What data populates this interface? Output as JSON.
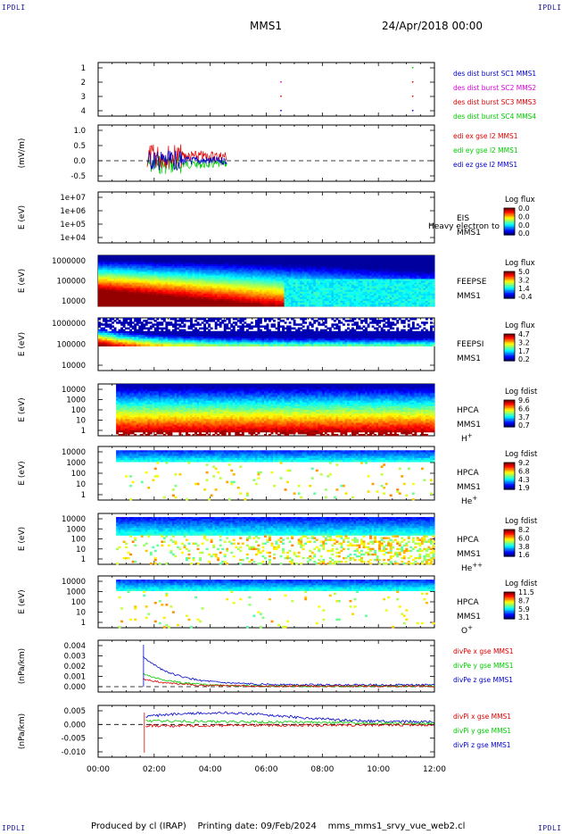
{
  "corners": {
    "tl": "IPDLI",
    "tr": "IPDLI",
    "bl": "IPDLI",
    "br": "IPDLI"
  },
  "header": {
    "spacecraft": "MMS1",
    "date": "24/Apr/2018 00:00"
  },
  "footer": {
    "text": "Produced by cl (IRAP)    Printing date: 09/Feb/2024    mms_mms1_srvy_vue_web2.cl"
  },
  "x_axis": {
    "ticks": [
      "00:00",
      "02:00",
      "04:00",
      "06:00",
      "08:00",
      "10:00",
      "12:00"
    ]
  },
  "colors": {
    "red": "#dd0000",
    "green": "#00cc00",
    "blue": "#0000cc",
    "magenta": "#dd00dd"
  },
  "chart_data": [
    {
      "type": "scatter",
      "name": "burst",
      "ylim": [
        0.5,
        4.5
      ],
      "ticks": [
        "1",
        "2",
        "3",
        "4"
      ],
      "series": [
        {
          "name": "des dist burst SC1 MMS1",
          "color": "#0000cc"
        },
        {
          "name": "des dist burst SC2 MMS2",
          "color": "#dd00dd"
        },
        {
          "name": "des dist burst SC3 MMS3",
          "color": "#dd0000"
        },
        {
          "name": "des dist burst SC4 MMS4",
          "color": "#00cc00"
        }
      ]
    },
    {
      "type": "line",
      "name": "edi",
      "ylabel": "(mV/m)",
      "ylim": [
        -0.8,
        1.2
      ],
      "ticks": [
        "1.0",
        "0.5",
        "0.0",
        "-0.5"
      ],
      "series": [
        {
          "name": "edi ex gse l2 MMS1",
          "color": "#dd0000"
        },
        {
          "name": "edi ey gse l2 MMS1",
          "color": "#00cc00"
        },
        {
          "name": "edi ez gse l2 MMS1",
          "color": "#0000cc"
        }
      ]
    },
    {
      "type": "heatmap",
      "name": "eis",
      "ylabel": "E (eV)",
      "ticks": [
        "1e+07",
        "1e+06",
        "1e+05",
        "1e+04"
      ],
      "labels": [
        "EIS",
        "MMS1"
      ],
      "overlay": "Heavy electron to",
      "colorbar": {
        "title": "Log flux",
        "values": [
          "0.0",
          "0.0",
          "0.0",
          "0.0"
        ]
      }
    },
    {
      "type": "heatmap",
      "name": "feepse",
      "ylabel": "E (eV)",
      "ticks": [
        "1000000",
        "100000",
        "10000"
      ],
      "labels": [
        "FEEPSE",
        "MMS1"
      ],
      "colorbar": {
        "title": "Log flux",
        "values": [
          "5.0",
          "3.2",
          "1.4",
          "-0.4"
        ]
      }
    },
    {
      "type": "heatmap",
      "name": "feepsi",
      "ylabel": "E (eV)",
      "ticks": [
        "1000000",
        "100000",
        "10000"
      ],
      "labels": [
        "FEEPSI",
        "MMS1"
      ],
      "colorbar": {
        "title": "Log flux",
        "values": [
          "4.7",
          "3.2",
          "1.7",
          "0.2"
        ]
      }
    },
    {
      "type": "heatmap",
      "name": "hpca-h",
      "ylabel": "E (eV)",
      "ticks": [
        "10000",
        "1000",
        "100",
        "10",
        "1"
      ],
      "labels": [
        "HPCA",
        "MMS1"
      ],
      "species": "H",
      "charge": "+",
      "colorbar": {
        "title": "Log fdist",
        "values": [
          "9.6",
          "6.6",
          "3.7",
          "0.7"
        ]
      }
    },
    {
      "type": "heatmap",
      "name": "hpca-he1",
      "ylabel": "E (eV)",
      "ticks": [
        "10000",
        "1000",
        "100",
        "10",
        "1"
      ],
      "labels": [
        "HPCA",
        "MMS1"
      ],
      "species": "He",
      "charge": "+",
      "colorbar": {
        "title": "Log fdist",
        "values": [
          "9.2",
          "6.8",
          "4.3",
          "1.9"
        ]
      }
    },
    {
      "type": "heatmap",
      "name": "hpca-he2",
      "ylabel": "E (eV)",
      "ticks": [
        "10000",
        "1000",
        "100",
        "10",
        "1"
      ],
      "labels": [
        "HPCA",
        "MMS1"
      ],
      "species": "He",
      "charge": "++",
      "colorbar": {
        "title": "Log fdist",
        "values": [
          "8.2",
          "6.0",
          "3.8",
          "1.6"
        ]
      }
    },
    {
      "type": "heatmap",
      "name": "hpca-o",
      "ylabel": "E (eV)",
      "ticks": [
        "10000",
        "1000",
        "100",
        "10",
        "1"
      ],
      "labels": [
        "HPCA",
        "MMS1"
      ],
      "species": "O",
      "charge": "+",
      "colorbar": {
        "title": "Log fdist",
        "values": [
          "11.5",
          "8.7",
          "5.9",
          "3.1"
        ]
      }
    },
    {
      "type": "line",
      "name": "divpe",
      "ylabel": "(nPa/km)",
      "ylim": [
        -0.0003,
        0.0042
      ],
      "ticks": [
        "0.004",
        "0.003",
        "0.002",
        "0.001",
        "0.000"
      ],
      "series": [
        {
          "name": "divPe x gse MMS1",
          "color": "#dd0000"
        },
        {
          "name": "divPe y gse MMS1",
          "color": "#00cc00"
        },
        {
          "name": "divPe z gse MMS1",
          "color": "#0000cc"
        }
      ]
    },
    {
      "type": "line",
      "name": "divpi",
      "ylabel": "(nPa/km)",
      "ylim": [
        -0.0115,
        0.0075
      ],
      "ticks": [
        "0.005",
        "0.000",
        "-0.005",
        "-0.010"
      ],
      "series": [
        {
          "name": "divPi x gse MMS1",
          "color": "#dd0000"
        },
        {
          "name": "divPi y gse MMS1",
          "color": "#00cc00"
        },
        {
          "name": "divPi z gse MMS1",
          "color": "#0000cc"
        }
      ]
    }
  ]
}
